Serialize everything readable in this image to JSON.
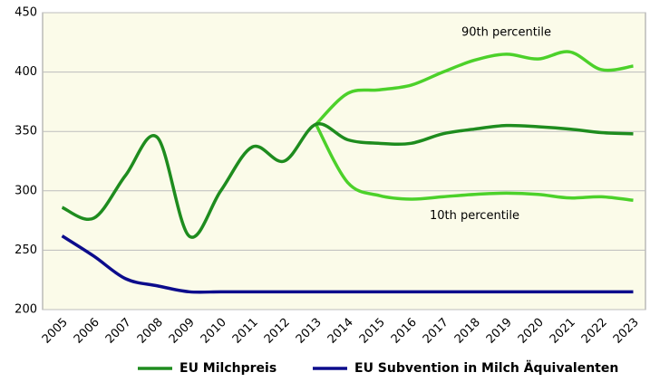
{
  "chart_data": {
    "type": "line",
    "categories": [
      "2005",
      "2006",
      "2007",
      "2008",
      "2009",
      "2010",
      "2011",
      "2012",
      "2013",
      "2014",
      "2015",
      "2016",
      "2017",
      "2018",
      "2019",
      "2020",
      "2021",
      "2022",
      "2023"
    ],
    "series": [
      {
        "name": "EU Milchpreis",
        "color": "#1e8c1e",
        "values": [
          286,
          277,
          313,
          345,
          262,
          300,
          337,
          325,
          356,
          343,
          340,
          340,
          348,
          352,
          355,
          354,
          352,
          349,
          348
        ]
      },
      {
        "name": "EU Subvention in Milch Äquivalenten",
        "color": "#0c0c8c",
        "values": [
          262,
          245,
          226,
          220,
          215,
          215,
          215,
          215,
          215,
          215,
          215,
          215,
          215,
          215,
          215,
          215,
          215,
          215,
          215
        ]
      }
    ],
    "percentiles": [
      {
        "name": "90th percentile",
        "color": "#4cd12a",
        "values": [
          null,
          null,
          null,
          null,
          null,
          null,
          null,
          null,
          356,
          382,
          385,
          389,
          400,
          410,
          415,
          411,
          417,
          402,
          405
        ]
      },
      {
        "name": "10th percentile",
        "color": "#4cd12a",
        "values": [
          null,
          null,
          null,
          null,
          null,
          null,
          null,
          null,
          356,
          307,
          296,
          293,
          295,
          297,
          298,
          297,
          294,
          295,
          292
        ]
      }
    ],
    "ylim": [
      200,
      450
    ],
    "yticks": [
      200,
      250,
      300,
      350,
      400,
      450
    ],
    "grid": true,
    "legend": "bottom"
  }
}
